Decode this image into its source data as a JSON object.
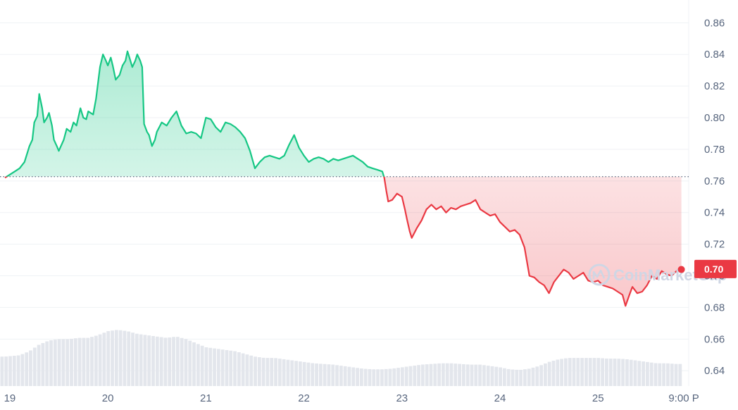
{
  "chart_data": {
    "type": "line",
    "title": "",
    "xlabel": "",
    "ylabel": "",
    "y_ticks": [
      "0.86",
      "0.84",
      "0.82",
      "0.80",
      "0.78",
      "0.76",
      "0.74",
      "0.72",
      "0.70",
      "0.68",
      "0.66",
      "0.64"
    ],
    "ylim": [
      0.6303,
      0.8655
    ],
    "x_ticks": [
      {
        "label": "19",
        "day": 0
      },
      {
        "label": "20",
        "day": 1
      },
      {
        "label": "21",
        "day": 2
      },
      {
        "label": "22",
        "day": 3
      },
      {
        "label": "23",
        "day": 4
      },
      {
        "label": "24",
        "day": 5
      },
      {
        "label": "25",
        "day": 6
      },
      {
        "label": "9:00 P",
        "day": 6.875
      }
    ],
    "xlim_days": [
      -0.1,
      6.925
    ],
    "baseline": 0.7627,
    "current_price_label": "0.70",
    "current_price": 0.7043,
    "colors": {
      "up": "#16c784",
      "down": "#ea3943",
      "grid": "#eff2f5",
      "volume": "#e3e6ec",
      "baseline": "#58667e"
    },
    "watermark": "CoinMarketCap",
    "grid": true,
    "series": [
      {
        "values": [
          [
            -0.05,
            0.762
          ],
          [
            0.0,
            0.764
          ],
          [
            0.05,
            0.766
          ],
          [
            0.1,
            0.768
          ],
          [
            0.15,
            0.772
          ],
          [
            0.2,
            0.782
          ],
          [
            0.23,
            0.786
          ],
          [
            0.25,
            0.797
          ],
          [
            0.28,
            0.801
          ],
          [
            0.3,
            0.815
          ],
          [
            0.33,
            0.806
          ],
          [
            0.35,
            0.797
          ],
          [
            0.38,
            0.8
          ],
          [
            0.4,
            0.803
          ],
          [
            0.43,
            0.795
          ],
          [
            0.45,
            0.786
          ],
          [
            0.48,
            0.782
          ],
          [
            0.5,
            0.779
          ],
          [
            0.55,
            0.786
          ],
          [
            0.58,
            0.793
          ],
          [
            0.62,
            0.791
          ],
          [
            0.65,
            0.797
          ],
          [
            0.68,
            0.795
          ],
          [
            0.72,
            0.806
          ],
          [
            0.75,
            0.8
          ],
          [
            0.78,
            0.799
          ],
          [
            0.8,
            0.804
          ],
          [
            0.85,
            0.802
          ],
          [
            0.88,
            0.812
          ],
          [
            0.92,
            0.832
          ],
          [
            0.95,
            0.84
          ],
          [
            0.98,
            0.836
          ],
          [
            1.0,
            0.833
          ],
          [
            1.03,
            0.838
          ],
          [
            1.05,
            0.833
          ],
          [
            1.08,
            0.824
          ],
          [
            1.12,
            0.827
          ],
          [
            1.15,
            0.833
          ],
          [
            1.18,
            0.836
          ],
          [
            1.2,
            0.842
          ],
          [
            1.22,
            0.838
          ],
          [
            1.25,
            0.832
          ],
          [
            1.28,
            0.836
          ],
          [
            1.3,
            0.84
          ],
          [
            1.33,
            0.836
          ],
          [
            1.35,
            0.832
          ],
          [
            1.37,
            0.796
          ],
          [
            1.4,
            0.791
          ],
          [
            1.42,
            0.789
          ],
          [
            1.45,
            0.782
          ],
          [
            1.48,
            0.786
          ],
          [
            1.5,
            0.791
          ],
          [
            1.55,
            0.797
          ],
          [
            1.6,
            0.795
          ],
          [
            1.65,
            0.8
          ],
          [
            1.7,
            0.804
          ],
          [
            1.75,
            0.795
          ],
          [
            1.8,
            0.79
          ],
          [
            1.85,
            0.791
          ],
          [
            1.9,
            0.79
          ],
          [
            1.95,
            0.787
          ],
          [
            2.0,
            0.8
          ],
          [
            2.05,
            0.799
          ],
          [
            2.1,
            0.794
          ],
          [
            2.15,
            0.791
          ],
          [
            2.2,
            0.797
          ],
          [
            2.25,
            0.796
          ],
          [
            2.3,
            0.794
          ],
          [
            2.35,
            0.791
          ],
          [
            2.4,
            0.787
          ],
          [
            2.45,
            0.779
          ],
          [
            2.5,
            0.768
          ],
          [
            2.55,
            0.772
          ],
          [
            2.6,
            0.775
          ],
          [
            2.65,
            0.776
          ],
          [
            2.7,
            0.775
          ],
          [
            2.75,
            0.774
          ],
          [
            2.8,
            0.776
          ],
          [
            2.85,
            0.783
          ],
          [
            2.9,
            0.789
          ],
          [
            2.95,
            0.781
          ],
          [
            3.0,
            0.776
          ],
          [
            3.05,
            0.772
          ],
          [
            3.1,
            0.774
          ],
          [
            3.15,
            0.775
          ],
          [
            3.2,
            0.774
          ],
          [
            3.25,
            0.772
          ],
          [
            3.3,
            0.774
          ],
          [
            3.35,
            0.773
          ],
          [
            3.4,
            0.774
          ],
          [
            3.45,
            0.775
          ],
          [
            3.5,
            0.776
          ],
          [
            3.55,
            0.774
          ],
          [
            3.6,
            0.772
          ],
          [
            3.65,
            0.769
          ],
          [
            3.7,
            0.768
          ],
          [
            3.75,
            0.767
          ],
          [
            3.8,
            0.766
          ],
          [
            3.82,
            0.762
          ],
          [
            3.84,
            0.754
          ],
          [
            3.86,
            0.747
          ],
          [
            3.9,
            0.748
          ],
          [
            3.95,
            0.752
          ],
          [
            4.0,
            0.75
          ],
          [
            4.03,
            0.742
          ],
          [
            4.05,
            0.736
          ],
          [
            4.08,
            0.728
          ],
          [
            4.1,
            0.724
          ],
          [
            4.15,
            0.73
          ],
          [
            4.2,
            0.735
          ],
          [
            4.25,
            0.742
          ],
          [
            4.3,
            0.745
          ],
          [
            4.35,
            0.742
          ],
          [
            4.4,
            0.744
          ],
          [
            4.45,
            0.74
          ],
          [
            4.5,
            0.743
          ],
          [
            4.55,
            0.742
          ],
          [
            4.6,
            0.744
          ],
          [
            4.65,
            0.745
          ],
          [
            4.7,
            0.746
          ],
          [
            4.75,
            0.748
          ],
          [
            4.8,
            0.742
          ],
          [
            4.85,
            0.74
          ],
          [
            4.9,
            0.738
          ],
          [
            4.95,
            0.739
          ],
          [
            5.0,
            0.734
          ],
          [
            5.05,
            0.731
          ],
          [
            5.1,
            0.728
          ],
          [
            5.15,
            0.729
          ],
          [
            5.2,
            0.726
          ],
          [
            5.25,
            0.718
          ],
          [
            5.3,
            0.7
          ],
          [
            5.35,
            0.699
          ],
          [
            5.4,
            0.696
          ],
          [
            5.45,
            0.694
          ],
          [
            5.5,
            0.689
          ],
          [
            5.55,
            0.696
          ],
          [
            5.6,
            0.7
          ],
          [
            5.65,
            0.704
          ],
          [
            5.7,
            0.702
          ],
          [
            5.75,
            0.698
          ],
          [
            5.8,
            0.7
          ],
          [
            5.85,
            0.702
          ],
          [
            5.9,
            0.697
          ],
          [
            5.95,
            0.696
          ],
          [
            6.0,
            0.697
          ],
          [
            6.05,
            0.694
          ],
          [
            6.1,
            0.693
          ],
          [
            6.15,
            0.692
          ],
          [
            6.2,
            0.69
          ],
          [
            6.25,
            0.688
          ],
          [
            6.28,
            0.681
          ],
          [
            6.32,
            0.688
          ],
          [
            6.35,
            0.693
          ],
          [
            6.4,
            0.689
          ],
          [
            6.45,
            0.69
          ],
          [
            6.5,
            0.694
          ],
          [
            6.55,
            0.7
          ],
          [
            6.6,
            0.698
          ],
          [
            6.65,
            0.703
          ],
          [
            6.7,
            0.701
          ],
          [
            6.75,
            0.7
          ],
          [
            6.8,
            0.703
          ],
          [
            6.85,
            0.704
          ]
        ]
      }
    ],
    "volume_relative": [
      [
        -0.05,
        0.44
      ],
      [
        0.1,
        0.46
      ],
      [
        0.2,
        0.52
      ],
      [
        0.3,
        0.62
      ],
      [
        0.4,
        0.68
      ],
      [
        0.5,
        0.7
      ],
      [
        0.6,
        0.7
      ],
      [
        0.7,
        0.72
      ],
      [
        0.8,
        0.72
      ],
      [
        0.9,
        0.76
      ],
      [
        1.0,
        0.82
      ],
      [
        1.1,
        0.84
      ],
      [
        1.2,
        0.82
      ],
      [
        1.3,
        0.78
      ],
      [
        1.4,
        0.76
      ],
      [
        1.5,
        0.74
      ],
      [
        1.6,
        0.72
      ],
      [
        1.7,
        0.74
      ],
      [
        1.8,
        0.7
      ],
      [
        1.9,
        0.64
      ],
      [
        2.0,
        0.58
      ],
      [
        2.1,
        0.56
      ],
      [
        2.2,
        0.54
      ],
      [
        2.3,
        0.52
      ],
      [
        2.4,
        0.48
      ],
      [
        2.5,
        0.44
      ],
      [
        2.6,
        0.42
      ],
      [
        2.7,
        0.42
      ],
      [
        2.8,
        0.4
      ],
      [
        2.9,
        0.38
      ],
      [
        3.0,
        0.36
      ],
      [
        3.1,
        0.34
      ],
      [
        3.2,
        0.33
      ],
      [
        3.3,
        0.32
      ],
      [
        3.4,
        0.3
      ],
      [
        3.5,
        0.28
      ],
      [
        3.6,
        0.26
      ],
      [
        3.7,
        0.25
      ],
      [
        3.8,
        0.25
      ],
      [
        3.9,
        0.26
      ],
      [
        4.0,
        0.28
      ],
      [
        4.1,
        0.3
      ],
      [
        4.2,
        0.32
      ],
      [
        4.3,
        0.33
      ],
      [
        4.4,
        0.34
      ],
      [
        4.5,
        0.34
      ],
      [
        4.6,
        0.33
      ],
      [
        4.7,
        0.32
      ],
      [
        4.8,
        0.32
      ],
      [
        4.9,
        0.3
      ],
      [
        5.0,
        0.28
      ],
      [
        5.1,
        0.25
      ],
      [
        5.2,
        0.24
      ],
      [
        5.3,
        0.26
      ],
      [
        5.4,
        0.3
      ],
      [
        5.5,
        0.36
      ],
      [
        5.6,
        0.4
      ],
      [
        5.7,
        0.42
      ],
      [
        5.8,
        0.42
      ],
      [
        5.9,
        0.42
      ],
      [
        6.0,
        0.42
      ],
      [
        6.1,
        0.41
      ],
      [
        6.2,
        0.41
      ],
      [
        6.3,
        0.4
      ],
      [
        6.4,
        0.38
      ],
      [
        6.5,
        0.36
      ],
      [
        6.6,
        0.34
      ],
      [
        6.7,
        0.34
      ],
      [
        6.8,
        0.33
      ],
      [
        6.87,
        0.33
      ]
    ]
  }
}
